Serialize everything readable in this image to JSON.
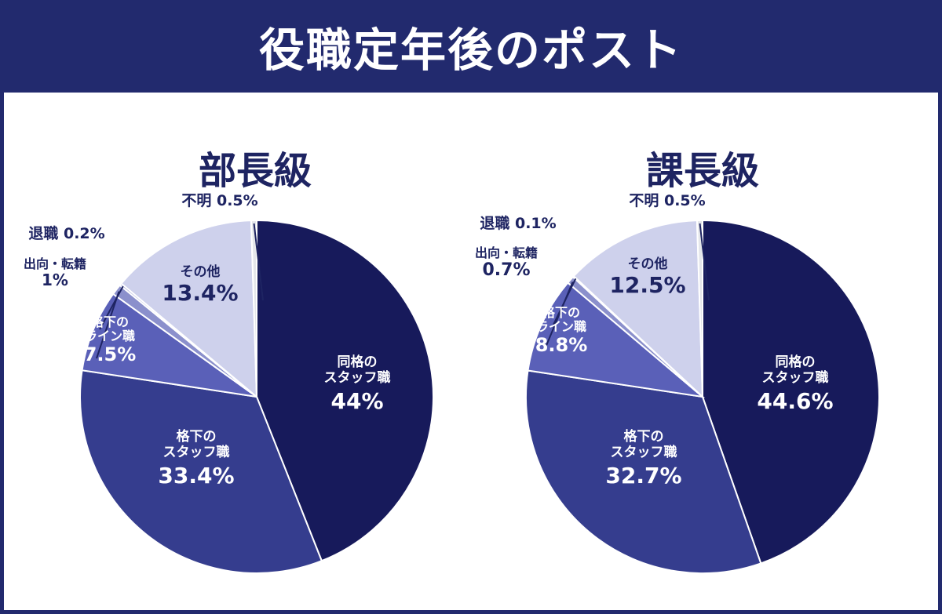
{
  "title": "役職定年後のポスト",
  "chart_data": [
    {
      "type": "pie",
      "title": "部長級",
      "slices": [
        {
          "name_lines": [
            "同格の",
            "スタッフ職"
          ],
          "label": "44%",
          "value": 44.0,
          "color": "#171a5b"
        },
        {
          "name_lines": [
            "格下の",
            "スタッフ職"
          ],
          "label": "33.4%",
          "value": 33.4,
          "color": "#353d8e"
        },
        {
          "name_lines": [
            "格下の",
            "ライン職"
          ],
          "label": "7.5%",
          "value": 7.5,
          "color": "#5a60b8"
        },
        {
          "name_lines": [
            "出向・転籍"
          ],
          "label": "1%",
          "value": 1.0,
          "color": "#8b90cc"
        },
        {
          "name_lines": [
            "退職"
          ],
          "label": "0.2%",
          "value": 0.2,
          "color": "#a6aad8"
        },
        {
          "name_lines": [
            "その他"
          ],
          "label": "13.4%",
          "value": 13.4,
          "color": "#ced1ec"
        },
        {
          "name_lines": [
            "不明"
          ],
          "label": "0.5%",
          "value": 0.5,
          "color": "#e4e6ea"
        }
      ]
    },
    {
      "type": "pie",
      "title": "課長級",
      "slices": [
        {
          "name_lines": [
            "同格の",
            "スタッフ職"
          ],
          "label": "44.6%",
          "value": 44.6,
          "color": "#171a5b"
        },
        {
          "name_lines": [
            "格下の",
            "スタッフ職"
          ],
          "label": "32.7%",
          "value": 32.7,
          "color": "#353d8e"
        },
        {
          "name_lines": [
            "格下の",
            "ライン職"
          ],
          "label": "8.8%",
          "value": 8.8,
          "color": "#5a60b8"
        },
        {
          "name_lines": [
            "出向・転籍"
          ],
          "label": "0.7%",
          "value": 0.7,
          "color": "#8b90cc"
        },
        {
          "name_lines": [
            "退職"
          ],
          "label": "0.1%",
          "value": 0.1,
          "color": "#a6aad8"
        },
        {
          "name_lines": [
            "その他"
          ],
          "label": "12.5%",
          "value": 12.5,
          "color": "#ced1ec"
        },
        {
          "name_lines": [
            "不明"
          ],
          "label": "0.5%",
          "value": 0.5,
          "color": "#e4e6ea"
        }
      ]
    }
  ]
}
